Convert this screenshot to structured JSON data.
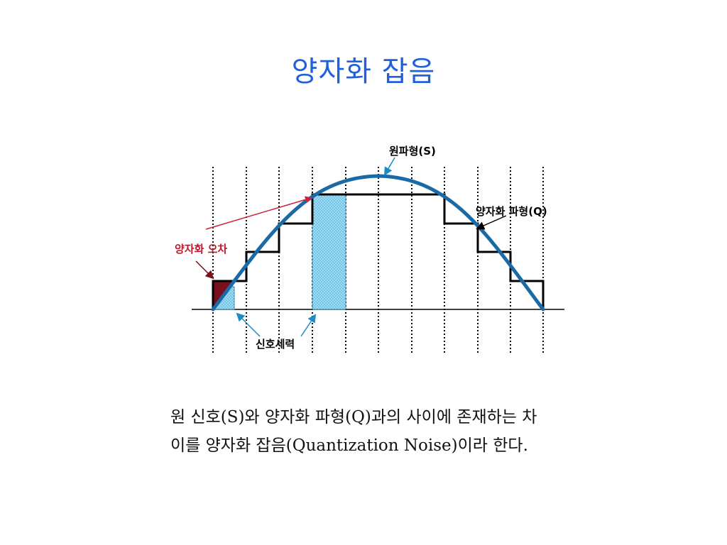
{
  "slide": {
    "title": "양자화 잡음"
  },
  "diagram": {
    "labels": {
      "original_waveform": "원파형(S)",
      "quantized_waveform": "양자화 파형(Q)",
      "quantization_error": "양자화 오차",
      "signal_power": "신호세력"
    },
    "colors": {
      "sine_curve": "#1a6aa6",
      "staircase": "#000000",
      "error_fill": "#7a0f1e",
      "power_fill": "#8fd6ee",
      "arrow_red": "#d0213b",
      "arrow_blue": "#1a8ac8",
      "grid": "#000000"
    }
  },
  "body": {
    "line1": "원 신호(S)와 양자화 파형(Q)과의 사이에 존재하는 차",
    "line2": "이를 양자화 잡음(Quantization Noise)이라 한다."
  }
}
